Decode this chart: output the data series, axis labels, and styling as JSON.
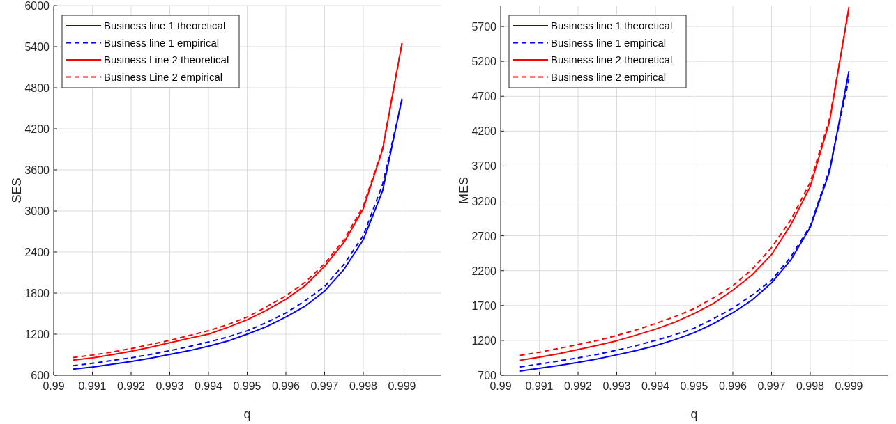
{
  "chart_data": [
    {
      "type": "line",
      "xlabel": "q",
      "ylabel": "SES",
      "x": [
        0.9905,
        0.991,
        0.9915,
        0.992,
        0.9925,
        0.993,
        0.9935,
        0.994,
        0.9945,
        0.995,
        0.9955,
        0.996,
        0.9965,
        0.997,
        0.9975,
        0.998,
        0.9985,
        0.999
      ],
      "xlim": [
        0.99,
        1.0
      ],
      "xticks": [
        0.99,
        0.991,
        0.992,
        0.993,
        0.994,
        0.995,
        0.996,
        0.997,
        0.998,
        0.999
      ],
      "ylim": [
        600,
        6000
      ],
      "yticks": [
        600,
        1200,
        1800,
        2400,
        3000,
        3600,
        4200,
        4800,
        5400,
        6000
      ],
      "grid": true,
      "legend": "top left",
      "series": [
        {
          "name": "Business line 1 theoretical",
          "color": "#0000ff",
          "line_style": "solid",
          "values": [
            690,
            720,
            760,
            800,
            850,
            905,
            960,
            1025,
            1100,
            1200,
            1310,
            1450,
            1610,
            1830,
            2145,
            2580,
            3295,
            4640
          ]
        },
        {
          "name": "Business line 1 empirical",
          "color": "#0000ff",
          "line_style": "dashed",
          "values": [
            740,
            775,
            815,
            855,
            905,
            960,
            1020,
            1085,
            1160,
            1250,
            1370,
            1510,
            1690,
            1895,
            2220,
            2640,
            3390,
            4620
          ]
        },
        {
          "name": "Business Line 2 theoretical",
          "color": "#ff0000",
          "line_style": "solid",
          "values": [
            820,
            855,
            900,
            950,
            1010,
            1075,
            1140,
            1200,
            1300,
            1410,
            1550,
            1710,
            1910,
            2190,
            2540,
            3030,
            3900,
            5450
          ]
        },
        {
          "name": "Business Line 2 empirical",
          "color": "#ff0000",
          "line_style": "dashed",
          "values": [
            860,
            895,
            940,
            990,
            1050,
            1110,
            1180,
            1250,
            1340,
            1450,
            1600,
            1760,
            1960,
            2230,
            2580,
            3070,
            3920,
            5450
          ]
        }
      ]
    },
    {
      "type": "line",
      "xlabel": "q",
      "ylabel": "MES",
      "x": [
        0.9905,
        0.991,
        0.9915,
        0.992,
        0.9925,
        0.993,
        0.9935,
        0.994,
        0.9945,
        0.995,
        0.9955,
        0.996,
        0.9965,
        0.997,
        0.9975,
        0.998,
        0.9985,
        0.999
      ],
      "xlim": [
        0.99,
        1.0
      ],
      "xticks": [
        0.99,
        0.991,
        0.992,
        0.993,
        0.994,
        0.995,
        0.996,
        0.997,
        0.998,
        0.999
      ],
      "ylim": [
        700,
        6000
      ],
      "yticks": [
        700,
        1200,
        1700,
        2200,
        2700,
        3200,
        3700,
        4200,
        4700,
        5200,
        5700
      ],
      "grid": true,
      "legend": "top left",
      "series": [
        {
          "name": "Business line 1 theoretical",
          "color": "#0000ff",
          "line_style": "solid",
          "values": [
            760,
            800,
            840,
            884,
            935,
            993,
            1055,
            1125,
            1210,
            1310,
            1440,
            1596,
            1780,
            2024,
            2355,
            2820,
            3620,
            5060
          ]
        },
        {
          "name": "Business line 1 empirical",
          "color": "#0000ff",
          "line_style": "dashed",
          "values": [
            820,
            860,
            905,
            950,
            1000,
            1060,
            1125,
            1200,
            1280,
            1374,
            1510,
            1662,
            1850,
            2063,
            2400,
            2840,
            3660,
            4950
          ]
        },
        {
          "name": "Business line 2 theoretical",
          "color": "#ff0000",
          "line_style": "solid",
          "values": [
            915,
            960,
            1010,
            1070,
            1130,
            1195,
            1275,
            1360,
            1460,
            1584,
            1730,
            1920,
            2140,
            2430,
            2860,
            3405,
            4340,
            5980
          ]
        },
        {
          "name": "Business line 2 empirical",
          "color": "#ff0000",
          "line_style": "dashed",
          "values": [
            985,
            1030,
            1085,
            1140,
            1200,
            1270,
            1350,
            1440,
            1540,
            1654,
            1810,
            1985,
            2220,
            2530,
            2930,
            3464,
            4380,
            5950
          ]
        }
      ]
    }
  ]
}
